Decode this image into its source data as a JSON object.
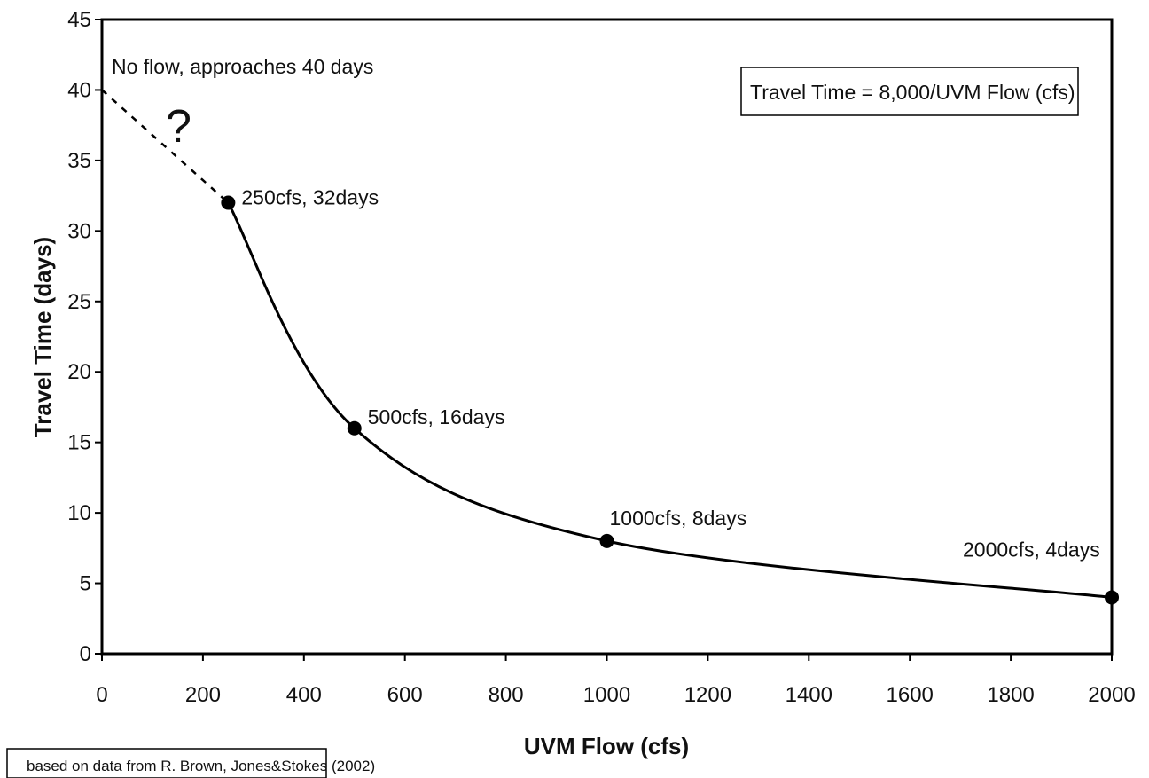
{
  "chart_data": {
    "type": "line",
    "xlabel": "UVM Flow (cfs)",
    "ylabel": "Travel Time (days)",
    "xlim": [
      0,
      2000
    ],
    "ylim": [
      0,
      45
    ],
    "x_ticks": [
      0,
      200,
      400,
      600,
      800,
      1000,
      1200,
      1400,
      1600,
      1800,
      2000
    ],
    "y_ticks": [
      0,
      5,
      10,
      15,
      20,
      25,
      30,
      35,
      40,
      45
    ],
    "grid": false,
    "legend": "none",
    "series": [
      {
        "style": "solid",
        "x": [
          250,
          500,
          1000,
          2000
        ],
        "y": [
          32,
          16,
          8,
          4
        ]
      },
      {
        "style": "dashed",
        "x": [
          0,
          250
        ],
        "y": [
          40,
          32
        ]
      }
    ],
    "points": [
      {
        "x": 250,
        "y": 32,
        "label": "250cfs, 32days"
      },
      {
        "x": 500,
        "y": 16,
        "label": "500cfs, 16days"
      },
      {
        "x": 1000,
        "y": 8,
        "label": "1000cfs, 8days"
      },
      {
        "x": 2000,
        "y": 4,
        "label": "2000cfs, 4days"
      }
    ],
    "annotations": {
      "no_flow": "No flow, approaches 40 days",
      "question": "?",
      "formula": "Travel Time = 8,000/UVM Flow (cfs)"
    },
    "source_note": "based on data from R. Brown, Jones&Stokes (2002)"
  }
}
